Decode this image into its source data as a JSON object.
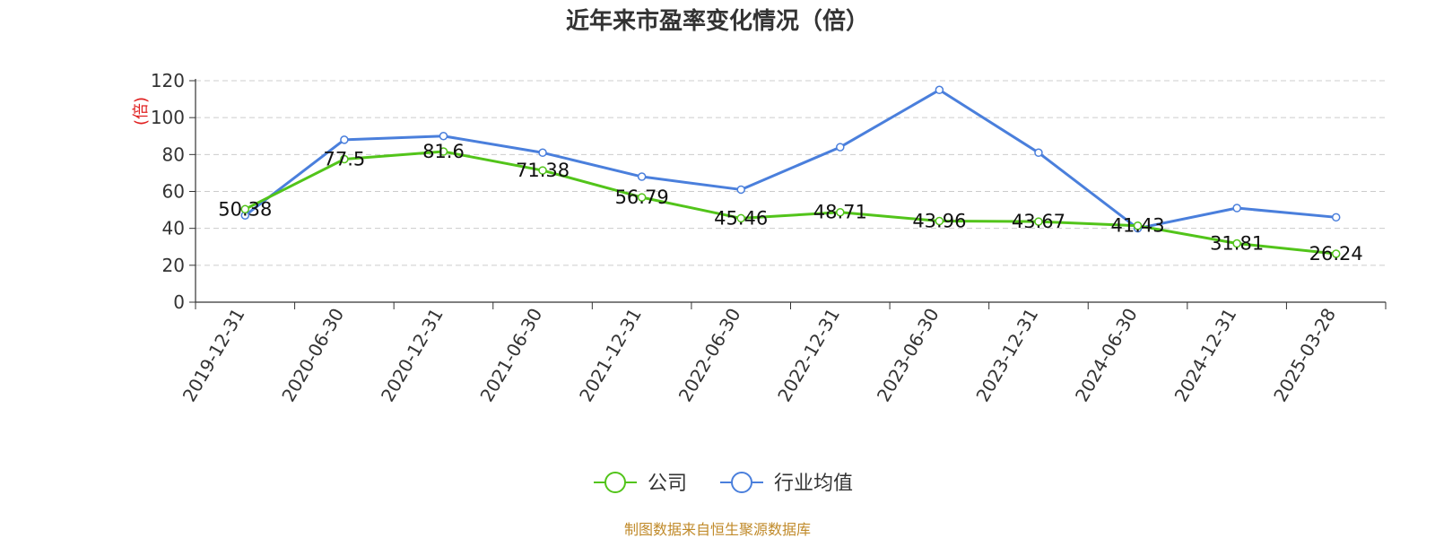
{
  "chart_data": {
    "type": "line",
    "title": "近年来市盈率变化情况（倍）",
    "ylabel": "(倍)",
    "xlabel": "",
    "ylim": [
      0,
      120
    ],
    "yticks": [
      0,
      20,
      40,
      60,
      80,
      100,
      120
    ],
    "grid": true,
    "legend_position": "bottom",
    "categories": [
      "2019-12-31",
      "2020-06-30",
      "2020-12-31",
      "2021-06-30",
      "2021-12-31",
      "2022-06-30",
      "2022-12-31",
      "2023-06-30",
      "2023-12-31",
      "2024-06-30",
      "2024-12-31",
      "2025-03-28"
    ],
    "series": [
      {
        "name": "公司",
        "color": "#52c41a",
        "values": [
          50.38,
          77.5,
          81.6,
          71.38,
          56.79,
          45.46,
          48.71,
          43.96,
          43.67,
          41.43,
          31.81,
          26.24
        ],
        "labels": [
          "50.38",
          "77.5",
          "81.6",
          "71.38",
          "56.79",
          "45.46",
          "48.71",
          "43.96",
          "43.67",
          "41.43",
          "31.81",
          "26.24"
        ]
      },
      {
        "name": "行业均值",
        "color": "#4a7fdc",
        "values": [
          47,
          88,
          90,
          81,
          68,
          61,
          84,
          115,
          81,
          40,
          51,
          46
        ]
      }
    ]
  },
  "footer": {
    "source": "制图数据来自恒生聚源数据库"
  }
}
